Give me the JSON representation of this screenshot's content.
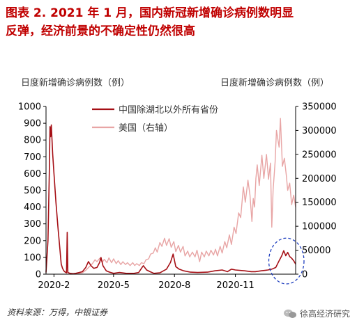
{
  "figure": {
    "title_line1": "图表 2. 2021 年 1 月，国内新冠新增确诊病例数明显",
    "title_line2": "反弹，经济前景的不确定性仍然很高",
    "source": "资料来源：万得，中银证券",
    "watermark": "徐高经济研究"
  },
  "colors": {
    "title": "#c00000",
    "china_line": "#a50f15",
    "us_line": "#e8a5a5",
    "highlight_circle": "#1f3fbf",
    "axis": "#000000"
  },
  "chart_data": {
    "type": "line",
    "ylabel_left": "日度新增确诊病例数（例）",
    "ylabel_right": "日度新增确诊病例数（例）",
    "left_axis": {
      "min": 0,
      "max": 1000,
      "ticks": [
        0,
        100,
        200,
        300,
        400,
        500,
        600,
        700,
        800,
        900,
        1000
      ]
    },
    "right_axis": {
      "min": 0,
      "max": 350000,
      "ticks": [
        0,
        50000,
        100000,
        150000,
        200000,
        250000,
        300000,
        350000
      ]
    },
    "x_range": [
      "2020-01-20",
      "2021-01-31"
    ],
    "x_ticks": [
      {
        "date": "2020-02-01",
        "label": "2020-2"
      },
      {
        "date": "2020-05-01",
        "label": "2020-5"
      },
      {
        "date": "2020-08-01",
        "label": "2020-8"
      },
      {
        "date": "2020-11-01",
        "label": "2020-11"
      }
    ],
    "legend_placement": "top-center",
    "grid": false,
    "series": [
      {
        "name": "中国除湖北以外所有省份",
        "axis": "left",
        "points": [
          [
            "2020-01-20",
            10
          ],
          [
            "2020-01-23",
            200
          ],
          [
            "2020-01-25",
            600
          ],
          [
            "2020-01-26",
            880
          ],
          [
            "2020-01-27",
            820
          ],
          [
            "2020-01-28",
            890
          ],
          [
            "2020-01-30",
            720
          ],
          [
            "2020-02-01",
            600
          ],
          [
            "2020-02-04",
            430
          ],
          [
            "2020-02-07",
            280
          ],
          [
            "2020-02-10",
            150
          ],
          [
            "2020-02-12",
            60
          ],
          [
            "2020-02-14",
            35
          ],
          [
            "2020-02-16",
            20
          ],
          [
            "2020-02-18",
            12
          ],
          [
            "2020-02-20",
            8
          ],
          [
            "2020-02-21",
            250
          ],
          [
            "2020-02-22",
            10
          ],
          [
            "2020-02-25",
            5
          ],
          [
            "2020-03-01",
            3
          ],
          [
            "2020-03-05",
            5
          ],
          [
            "2020-03-10",
            10
          ],
          [
            "2020-03-15",
            15
          ],
          [
            "2020-03-20",
            40
          ],
          [
            "2020-03-24",
            75
          ],
          [
            "2020-03-28",
            50
          ],
          [
            "2020-04-01",
            35
          ],
          [
            "2020-04-06",
            40
          ],
          [
            "2020-04-10",
            70
          ],
          [
            "2020-04-12",
            100
          ],
          [
            "2020-04-15",
            50
          ],
          [
            "2020-04-20",
            20
          ],
          [
            "2020-04-25",
            12
          ],
          [
            "2020-05-01",
            5
          ],
          [
            "2020-05-10",
            10
          ],
          [
            "2020-05-20",
            5
          ],
          [
            "2020-06-01",
            5
          ],
          [
            "2020-06-08",
            10
          ],
          [
            "2020-06-13",
            40
          ],
          [
            "2020-06-15",
            50
          ],
          [
            "2020-06-20",
            25
          ],
          [
            "2020-06-25",
            15
          ],
          [
            "2020-07-01",
            5
          ],
          [
            "2020-07-10",
            8
          ],
          [
            "2020-07-20",
            30
          ],
          [
            "2020-07-26",
            70
          ],
          [
            "2020-07-30",
            120
          ],
          [
            "2020-08-03",
            45
          ],
          [
            "2020-08-08",
            30
          ],
          [
            "2020-08-15",
            20
          ],
          [
            "2020-08-25",
            12
          ],
          [
            "2020-09-05",
            10
          ],
          [
            "2020-09-20",
            12
          ],
          [
            "2020-10-01",
            20
          ],
          [
            "2020-10-12",
            25
          ],
          [
            "2020-10-20",
            15
          ],
          [
            "2020-10-26",
            30
          ],
          [
            "2020-11-01",
            25
          ],
          [
            "2020-11-15",
            20
          ],
          [
            "2020-11-25",
            15
          ],
          [
            "2020-12-01",
            15
          ],
          [
            "2020-12-10",
            20
          ],
          [
            "2020-12-20",
            25
          ],
          [
            "2020-12-26",
            30
          ],
          [
            "2021-01-01",
            40
          ],
          [
            "2021-01-06",
            80
          ],
          [
            "2021-01-10",
            110
          ],
          [
            "2021-01-13",
            140
          ],
          [
            "2021-01-16",
            110
          ],
          [
            "2021-01-19",
            130
          ],
          [
            "2021-01-22",
            105
          ],
          [
            "2021-01-25",
            95
          ],
          [
            "2021-01-28",
            80
          ],
          [
            "2021-01-31",
            60
          ]
        ]
      },
      {
        "name": "美国（右轴）",
        "axis": "right",
        "points": [
          [
            "2020-02-25",
            0
          ],
          [
            "2020-03-05",
            200
          ],
          [
            "2020-03-15",
            3000
          ],
          [
            "2020-03-20",
            8000
          ],
          [
            "2020-03-25",
            15000
          ],
          [
            "2020-03-30",
            22000
          ],
          [
            "2020-04-03",
            30000
          ],
          [
            "2020-04-06",
            26000
          ],
          [
            "2020-04-10",
            33000
          ],
          [
            "2020-04-14",
            25000
          ],
          [
            "2020-04-17",
            31000
          ],
          [
            "2020-04-21",
            24000
          ],
          [
            "2020-04-24",
            34000
          ],
          [
            "2020-04-28",
            24000
          ],
          [
            "2020-05-01",
            32000
          ],
          [
            "2020-05-05",
            22000
          ],
          [
            "2020-05-08",
            28000
          ],
          [
            "2020-05-12",
            20000
          ],
          [
            "2020-05-15",
            26000
          ],
          [
            "2020-05-19",
            20000
          ],
          [
            "2020-05-22",
            24000
          ],
          [
            "2020-05-26",
            18000
          ],
          [
            "2020-05-30",
            24000
          ],
          [
            "2020-06-02",
            18000
          ],
          [
            "2020-06-05",
            22000
          ],
          [
            "2020-06-09",
            18000
          ],
          [
            "2020-06-12",
            24000
          ],
          [
            "2020-06-16",
            22000
          ],
          [
            "2020-06-19",
            30000
          ],
          [
            "2020-06-23",
            32000
          ],
          [
            "2020-06-26",
            42000
          ],
          [
            "2020-06-30",
            44000
          ],
          [
            "2020-07-03",
            55000
          ],
          [
            "2020-07-06",
            46000
          ],
          [
            "2020-07-10",
            66000
          ],
          [
            "2020-07-13",
            58000
          ],
          [
            "2020-07-17",
            75000
          ],
          [
            "2020-07-20",
            60000
          ],
          [
            "2020-07-24",
            74000
          ],
          [
            "2020-07-27",
            56000
          ],
          [
            "2020-07-31",
            68000
          ],
          [
            "2020-08-03",
            47000
          ],
          [
            "2020-08-07",
            60000
          ],
          [
            "2020-08-10",
            46000
          ],
          [
            "2020-08-14",
            58000
          ],
          [
            "2020-08-17",
            38000
          ],
          [
            "2020-08-21",
            48000
          ],
          [
            "2020-08-24",
            36000
          ],
          [
            "2020-08-28",
            46000
          ],
          [
            "2020-09-01",
            36000
          ],
          [
            "2020-09-04",
            50000
          ],
          [
            "2020-09-08",
            26000
          ],
          [
            "2020-09-11",
            46000
          ],
          [
            "2020-09-15",
            36000
          ],
          [
            "2020-09-18",
            48000
          ],
          [
            "2020-09-22",
            38000
          ],
          [
            "2020-09-25",
            50000
          ],
          [
            "2020-09-29",
            40000
          ],
          [
            "2020-10-02",
            52000
          ],
          [
            "2020-10-05",
            38000
          ],
          [
            "2020-10-09",
            58000
          ],
          [
            "2020-10-12",
            44000
          ],
          [
            "2020-10-16",
            68000
          ],
          [
            "2020-10-19",
            55000
          ],
          [
            "2020-10-23",
            82000
          ],
          [
            "2020-10-26",
            62000
          ],
          [
            "2020-10-30",
            98000
          ],
          [
            "2020-11-02",
            85000
          ],
          [
            "2020-11-06",
            128000
          ],
          [
            "2020-11-09",
            118000
          ],
          [
            "2020-11-13",
            182000
          ],
          [
            "2020-11-16",
            150000
          ],
          [
            "2020-11-20",
            196000
          ],
          [
            "2020-11-23",
            165000
          ],
          [
            "2020-11-26",
            110000
          ],
          [
            "2020-11-28",
            158000
          ],
          [
            "2020-11-30",
            140000
          ],
          [
            "2020-12-02",
            200000
          ],
          [
            "2020-12-04",
            228000
          ],
          [
            "2020-12-07",
            185000
          ],
          [
            "2020-12-11",
            248000
          ],
          [
            "2020-12-14",
            200000
          ],
          [
            "2020-12-18",
            250000
          ],
          [
            "2020-12-21",
            198000
          ],
          [
            "2020-12-24",
            232000
          ],
          [
            "2020-12-26",
            98000
          ],
          [
            "2020-12-28",
            176000
          ],
          [
            "2020-12-31",
            235000
          ],
          [
            "2021-01-02",
            300000
          ],
          [
            "2021-01-06",
            265000
          ],
          [
            "2021-01-08",
            325000
          ],
          [
            "2021-01-11",
            225000
          ],
          [
            "2021-01-14",
            242000
          ],
          [
            "2021-01-17",
            205000
          ],
          [
            "2021-01-19",
            175000
          ],
          [
            "2021-01-22",
            190000
          ],
          [
            "2021-01-25",
            145000
          ],
          [
            "2021-01-28",
            165000
          ],
          [
            "2021-01-31",
            140000
          ]
        ]
      }
    ],
    "highlight": {
      "start": "2021-01-01",
      "end": "2021-01-31",
      "y_min": 0,
      "y_max": 190,
      "axis": "left",
      "style": "dashed ellipse"
    }
  }
}
